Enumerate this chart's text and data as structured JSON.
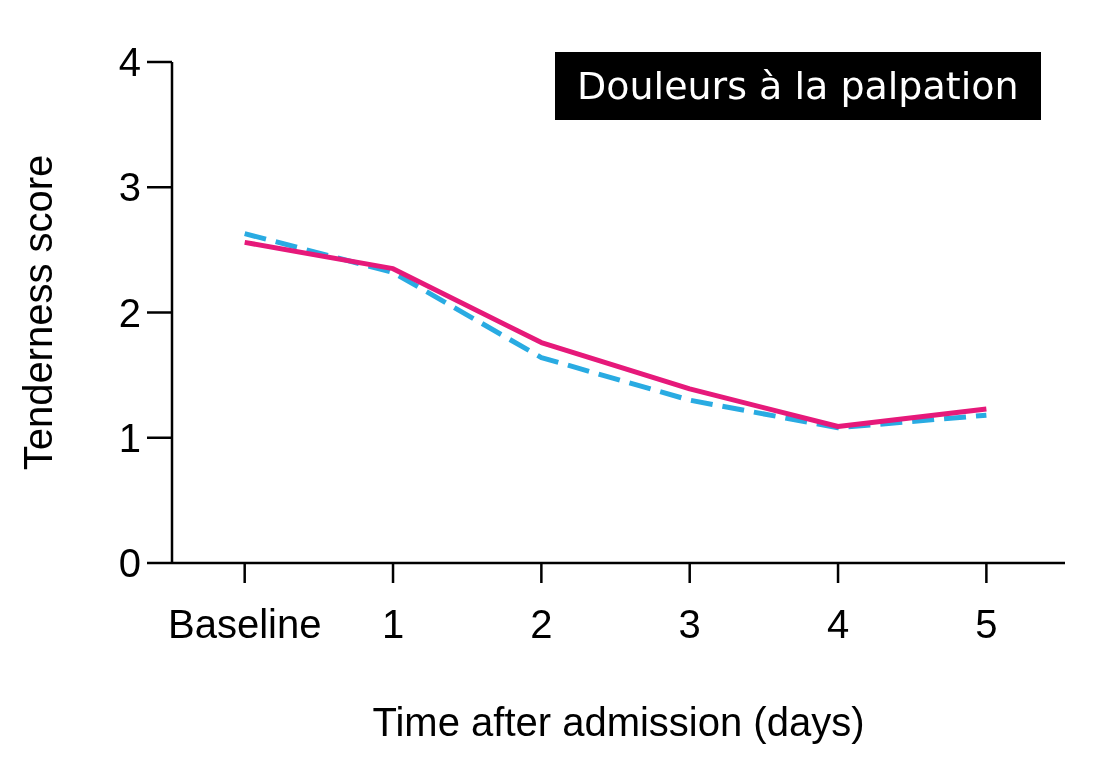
{
  "chart_data": {
    "type": "line",
    "title": "Douleurs à la palpation",
    "xlabel": "Time after admission (days)",
    "ylabel": "Tenderness score",
    "categories": [
      "Baseline",
      "1",
      "2",
      "3",
      "4",
      "5"
    ],
    "series": [
      {
        "color": "#29abe2",
        "line_style": "dashed",
        "values": [
          2.63,
          2.32,
          1.64,
          1.3,
          1.08,
          1.18
        ]
      },
      {
        "color": "#e6197a",
        "line_style": "solid",
        "values": [
          2.56,
          2.35,
          1.76,
          1.39,
          1.09,
          1.23
        ]
      }
    ],
    "ylim": [
      0,
      4
    ],
    "yticks": [
      0,
      1,
      2,
      3,
      4
    ],
    "grid": false,
    "marker": "none"
  }
}
